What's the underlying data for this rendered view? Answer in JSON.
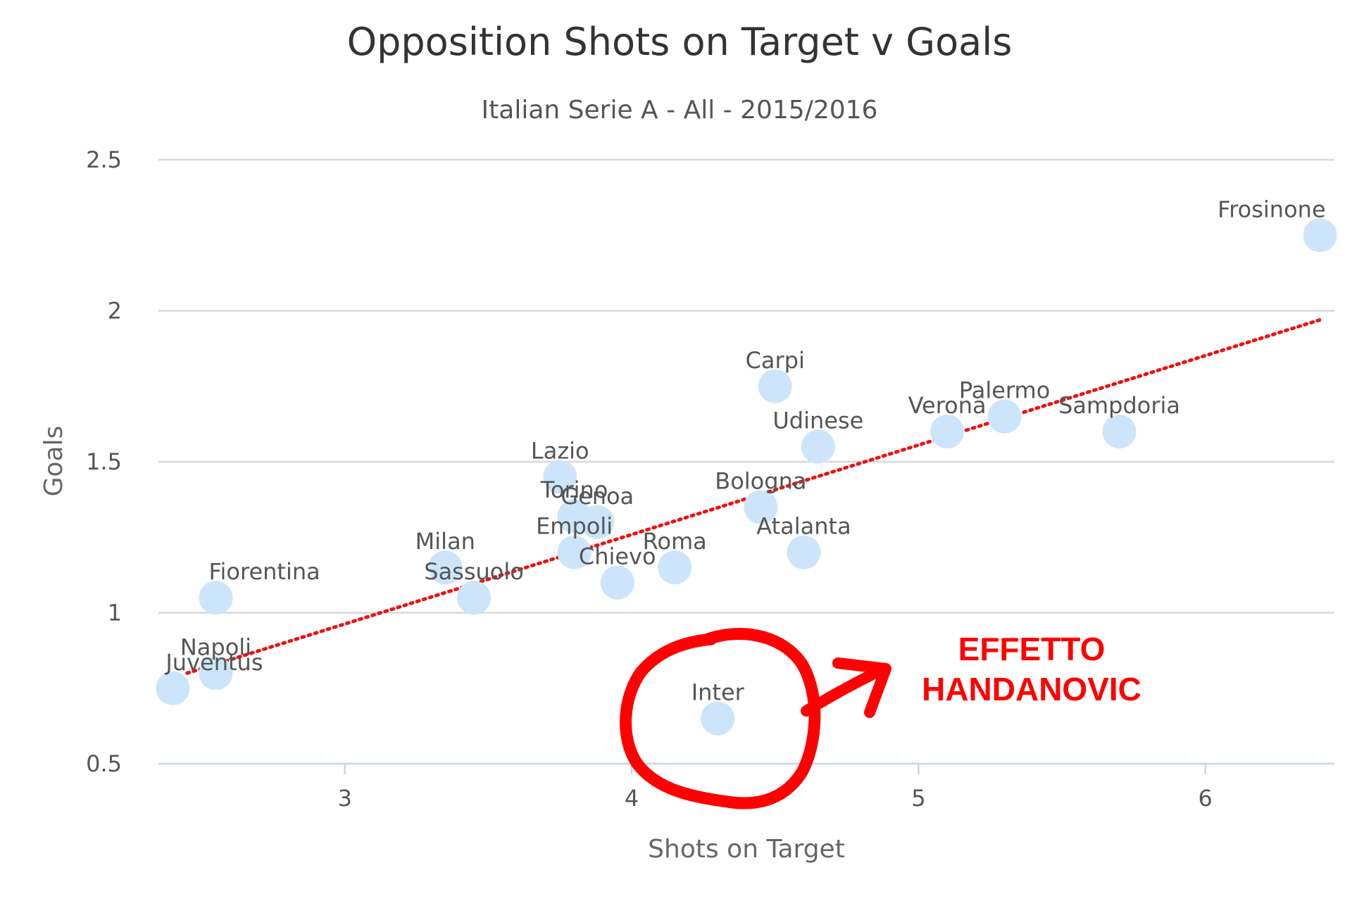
{
  "chart_data": {
    "type": "scatter",
    "title": "Opposition Shots on Target v Goals",
    "subtitle": "Italian Serie A - All - 2015/2016",
    "xlabel": "Shots on Target",
    "ylabel": "Goals",
    "xlim": [
      2.35,
      6.45
    ],
    "ylim": [
      0.5,
      2.5
    ],
    "xticks": [
      3,
      4,
      5,
      6
    ],
    "yticks": [
      0.5,
      1,
      1.5,
      2,
      2.5
    ],
    "grid": "horizontal",
    "colors": {
      "point": "#cce5fb",
      "gridline": "#d8d8d8",
      "trendline": "#ee1111",
      "annotation": "#ff0000"
    },
    "points": [
      {
        "name": "Frosinone",
        "x": 6.4,
        "y": 2.25,
        "label_pos": "above-left"
      },
      {
        "name": "Carpi",
        "x": 4.5,
        "y": 1.75,
        "label_pos": "above"
      },
      {
        "name": "Palermo",
        "x": 5.3,
        "y": 1.65,
        "label_pos": "above"
      },
      {
        "name": "Verona",
        "x": 5.1,
        "y": 1.6,
        "label_pos": "above"
      },
      {
        "name": "Sampdoria",
        "x": 5.7,
        "y": 1.6,
        "label_pos": "above"
      },
      {
        "name": "Udinese",
        "x": 4.65,
        "y": 1.55,
        "label_pos": "above"
      },
      {
        "name": "Lazio",
        "x": 3.75,
        "y": 1.45,
        "label_pos": "above"
      },
      {
        "name": "Bologna",
        "x": 4.45,
        "y": 1.35,
        "label_pos": "above"
      },
      {
        "name": "Torino",
        "x": 3.8,
        "y": 1.32,
        "label_pos": "above"
      },
      {
        "name": "Genoa",
        "x": 3.88,
        "y": 1.3,
        "label_pos": "above"
      },
      {
        "name": "Empoli",
        "x": 3.8,
        "y": 1.2,
        "label_pos": "above"
      },
      {
        "name": "Atalanta",
        "x": 4.6,
        "y": 1.2,
        "label_pos": "above"
      },
      {
        "name": "Milan",
        "x": 3.35,
        "y": 1.15,
        "label_pos": "above"
      },
      {
        "name": "Roma",
        "x": 4.15,
        "y": 1.15,
        "label_pos": "above"
      },
      {
        "name": "Chievo",
        "x": 3.95,
        "y": 1.1,
        "label_pos": "above"
      },
      {
        "name": "Fiorentina",
        "x": 2.55,
        "y": 1.05,
        "label_pos": "above-right"
      },
      {
        "name": "Sassuolo",
        "x": 3.45,
        "y": 1.05,
        "label_pos": "above"
      },
      {
        "name": "Napoli",
        "x": 2.55,
        "y": 0.8,
        "label_pos": "above"
      },
      {
        "name": "Juventus",
        "x": 2.4,
        "y": 0.75,
        "label_pos": "above-right"
      },
      {
        "name": "Inter",
        "x": 4.3,
        "y": 0.65,
        "label_pos": "above"
      }
    ],
    "trendline": {
      "x1": 2.45,
      "y1": 0.8,
      "x2": 6.4,
      "y2": 1.97
    },
    "annotation": {
      "lines": [
        "EFFETTO",
        "HANDANOVIC"
      ],
      "highlight": "Inter"
    }
  }
}
